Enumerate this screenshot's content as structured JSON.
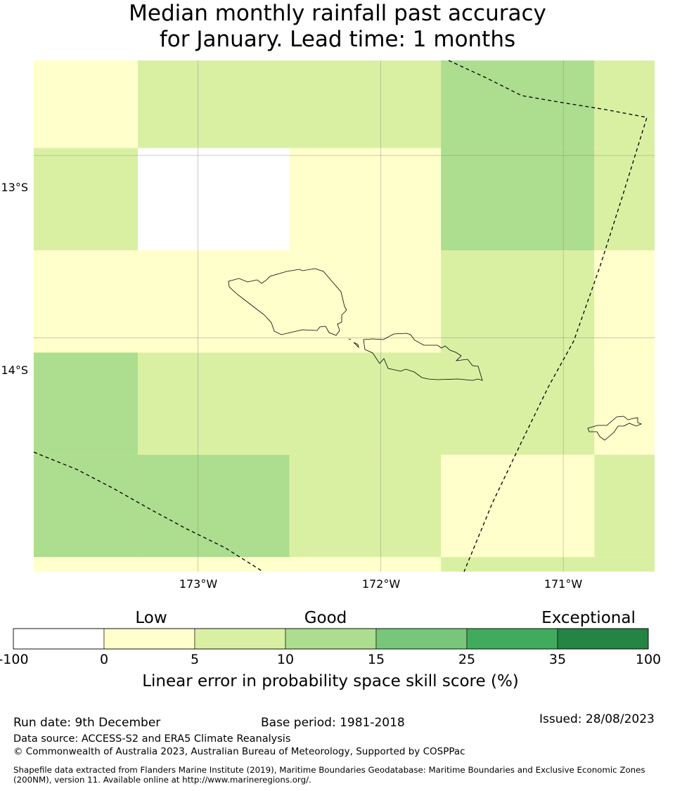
{
  "title": {
    "line1": "Median monthly rainfall past accuracy",
    "line2": "for January. Lead time: 1 months"
  },
  "map": {
    "lat_labels": [
      "13°S",
      "14°S"
    ],
    "lon_labels": [
      "173°W",
      "172°W",
      "171°W"
    ],
    "grid_cells": [
      {
        "lon": [
          -173.9,
          -173.33
        ],
        "lat": [
          -12.48,
          -12.96
        ],
        "class": "0-5"
      },
      {
        "lon": [
          -173.33,
          -171.67
        ],
        "lat": [
          -12.48,
          -12.96
        ],
        "class": "5-10"
      },
      {
        "lon": [
          -171.67,
          -170.83
        ],
        "lat": [
          -12.48,
          -12.96
        ],
        "class": "10-15"
      },
      {
        "lon": [
          -170.83,
          -170.5
        ],
        "lat": [
          -12.48,
          -12.96
        ],
        "class": "5-10"
      },
      {
        "lon": [
          -173.9,
          -173.33
        ],
        "lat": [
          -12.96,
          -13.52
        ],
        "class": "5-10"
      },
      {
        "lon": [
          -173.33,
          -172.5
        ],
        "lat": [
          -12.96,
          -13.52
        ],
        "class": "-100-0"
      },
      {
        "lon": [
          -172.5,
          -171.67
        ],
        "lat": [
          -12.96,
          -13.52
        ],
        "class": "0-5"
      },
      {
        "lon": [
          -171.67,
          -170.83
        ],
        "lat": [
          -12.96,
          -13.52
        ],
        "class": "10-15"
      },
      {
        "lon": [
          -170.83,
          -170.5
        ],
        "lat": [
          -12.96,
          -13.52
        ],
        "class": "5-10"
      },
      {
        "lon": [
          -173.9,
          -171.67
        ],
        "lat": [
          -13.52,
          -14.08
        ],
        "class": "0-5"
      },
      {
        "lon": [
          -171.67,
          -170.83
        ],
        "lat": [
          -13.52,
          -14.08
        ],
        "class": "5-10"
      },
      {
        "lon": [
          -170.83,
          -170.5
        ],
        "lat": [
          -13.52,
          -14.08
        ],
        "class": "0-5"
      },
      {
        "lon": [
          -173.9,
          -173.33
        ],
        "lat": [
          -14.08,
          -14.64
        ],
        "class": "10-15"
      },
      {
        "lon": [
          -173.33,
          -170.83
        ],
        "lat": [
          -14.08,
          -14.64
        ],
        "class": "5-10"
      },
      {
        "lon": [
          -170.83,
          -170.5
        ],
        "lat": [
          -14.08,
          -14.64
        ],
        "class": "0-5"
      },
      {
        "lon": [
          -173.9,
          -173.33
        ],
        "lat": [
          -14.64,
          -15.2
        ],
        "class": "10-15"
      },
      {
        "lon": [
          -173.33,
          -172.5
        ],
        "lat": [
          -14.64,
          -15.2
        ],
        "class": "10-15"
      },
      {
        "lon": [
          -172.5,
          -171.67
        ],
        "lat": [
          -14.64,
          -15.2
        ],
        "class": "5-10"
      },
      {
        "lon": [
          -171.67,
          -170.83
        ],
        "lat": [
          -14.64,
          -15.2
        ],
        "class": "0-5"
      },
      {
        "lon": [
          -170.83,
          -170.5
        ],
        "lat": [
          -14.64,
          -15.2
        ],
        "class": "5-10"
      },
      {
        "lon": [
          -171.67,
          -170.5
        ],
        "lat": [
          -15.2,
          -15.3
        ],
        "class": "5-10"
      }
    ],
    "islands": [
      "Savai'i",
      "Upolu",
      "Tutuila"
    ],
    "boundaries": [
      "maritime-boundary-west",
      "maritime-boundary-east"
    ]
  },
  "colorbar": {
    "categories": [
      "Low",
      "Good",
      "Exceptional"
    ],
    "bins": [
      {
        "from": "-100",
        "to": "0",
        "color": "#ffffff"
      },
      {
        "from": "0",
        "to": "5",
        "color": "#ffffcc"
      },
      {
        "from": "5",
        "to": "10",
        "color": "#d9f0a3"
      },
      {
        "from": "10",
        "to": "15",
        "color": "#addd8e"
      },
      {
        "from": "15",
        "to": "25",
        "color": "#78c679"
      },
      {
        "from": "25",
        "to": "35",
        "color": "#41ab5d"
      },
      {
        "from": "35",
        "to": "100",
        "color": "#238443"
      }
    ],
    "ticks": [
      "-100",
      "0",
      "5",
      "10",
      "15",
      "25",
      "35",
      "100"
    ],
    "axis_label": "Linear error in probability space skill score (%)"
  },
  "footer": {
    "run_date": "Run date: 9th December",
    "base_period": "Base period: 1981-2018",
    "issued": "Issued: 28/08/2023",
    "data_source": "Data source: ACCESS-S2 and ERA5 Climate Reanalysis",
    "copyright": "© Commonwealth of Australia 2023, Australian Bureau of Meteorology, Supported by COSPPac",
    "shapefile_line1": "Shapefile data extracted from Flanders Marine Institute (2019), Maritime Boundaries Geodatabase: Maritime Boundaries and Exclusive Economic Zones",
    "shapefile_line2": "(200NM), version 11. Available online at http://www.marineregions.org/."
  }
}
